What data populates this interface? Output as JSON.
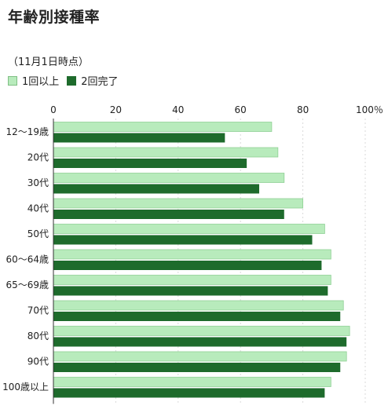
{
  "header": {
    "title": "年齢別接種率",
    "subtitle": "（11月1日時点）"
  },
  "colors": {
    "series1": "#b8ebbc",
    "series2": "#1e6b2c",
    "grid": "#d9d9d9",
    "axis": "#333333"
  },
  "chart_data": {
    "type": "bar",
    "orientation": "horizontal",
    "title": "年齢別接種率",
    "subtitle": "（11月1日時点）",
    "xlabel": "",
    "ylabel": "",
    "xlim": [
      0,
      100
    ],
    "x_ticks": [
      "0",
      "20",
      "40",
      "60",
      "80",
      "100％"
    ],
    "grid": true,
    "legend_position": "top-left",
    "categories": [
      "12〜19歳",
      "20代",
      "30代",
      "40代",
      "50代",
      "60〜64歳",
      "65〜69歳",
      "70代",
      "80代",
      "90代",
      "100歳以上"
    ],
    "series": [
      {
        "name": "1回以上",
        "values": [
          70,
          72,
          74,
          80,
          87,
          89,
          89,
          93,
          95,
          94,
          89
        ]
      },
      {
        "name": "2回完了",
        "values": [
          55,
          62,
          66,
          74,
          83,
          86,
          88,
          92,
          94,
          92,
          87
        ]
      }
    ]
  }
}
